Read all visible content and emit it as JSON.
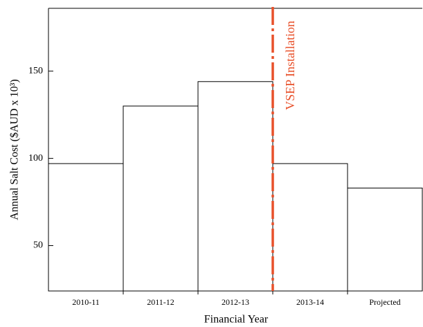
{
  "chart_data": {
    "type": "bar",
    "x_label": "Financial Year",
    "y_label": "Annual Salt Cost ($AUD x 10³)",
    "categories": [
      "2010-11",
      "2011-12",
      "2012-13",
      "2013-14",
      "Projected"
    ],
    "values": [
      97,
      130,
      144,
      97,
      83
    ],
    "color": "#ffffff",
    "ylim": [
      24,
      186
    ],
    "yticks": [
      50,
      100,
      150
    ],
    "annotation": {
      "text": "VSEP Installation",
      "color": "#e8502a"
    }
  }
}
